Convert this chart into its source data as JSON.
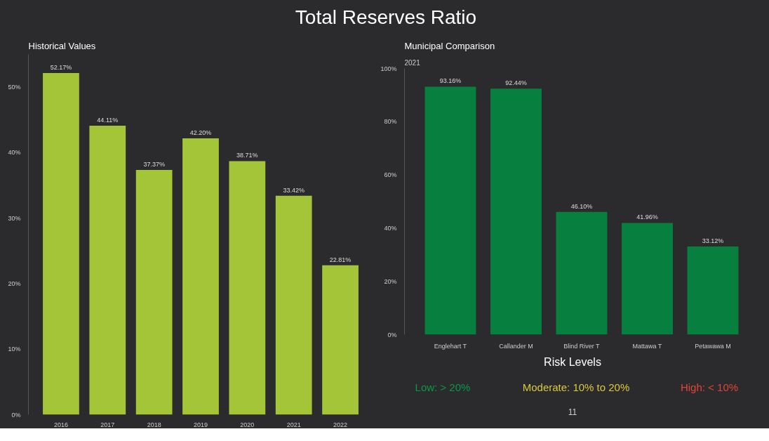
{
  "chart_data": [
    {
      "type": "bar",
      "title": "Historical Values",
      "annotations": [
        "Total Reserves Ratio"
      ],
      "categories": [
        "2016",
        "2017",
        "2018",
        "2019",
        "2020",
        "2021",
        "2022"
      ],
      "values": [
        52.17,
        44.11,
        37.37,
        42.2,
        38.71,
        33.42,
        22.81
      ],
      "value_labels": [
        "52.17%",
        "44.11%",
        "37.37%",
        "42.20%",
        "38.71%",
        "33.42%",
        "22.81%"
      ],
      "color": "#a5c539",
      "ylim": [
        0,
        55
      ],
      "yticks": [
        {
          "value": 0,
          "label": "0%"
        },
        {
          "value": 10,
          "label": "10%"
        },
        {
          "value": 20,
          "label": "20%"
        },
        {
          "value": 30,
          "label": "30%"
        },
        {
          "value": 40,
          "label": "40%"
        },
        {
          "value": 50,
          "label": "50%"
        }
      ],
      "grid": false
    },
    {
      "type": "bar",
      "title": "Municipal Comparison",
      "subtitle": "2021",
      "annotations": [
        "Risk Levels",
        "Low: > 20%",
        "Moderate: 10% to 20%",
        "High: < 10%",
        "11"
      ],
      "categories": [
        "Englehart T",
        "Callander M",
        "Blind River T",
        "Mattawa T",
        "Petawawa M"
      ],
      "values": [
        93.16,
        92.44,
        46.1,
        41.96,
        33.12
      ],
      "value_labels": [
        "93.16%",
        "92.44%",
        "46.10%",
        "41.96%",
        "33.12%"
      ],
      "color": "#077f3f",
      "ylim": [
        0,
        100
      ],
      "yticks": [
        {
          "value": 0,
          "label": "0%"
        },
        {
          "value": 20,
          "label": "20%"
        },
        {
          "value": 40,
          "label": "40%"
        },
        {
          "value": 60,
          "label": "60%"
        },
        {
          "value": 80,
          "label": "80%"
        },
        {
          "value": 100,
          "label": "100%"
        }
      ],
      "grid": false
    }
  ]
}
